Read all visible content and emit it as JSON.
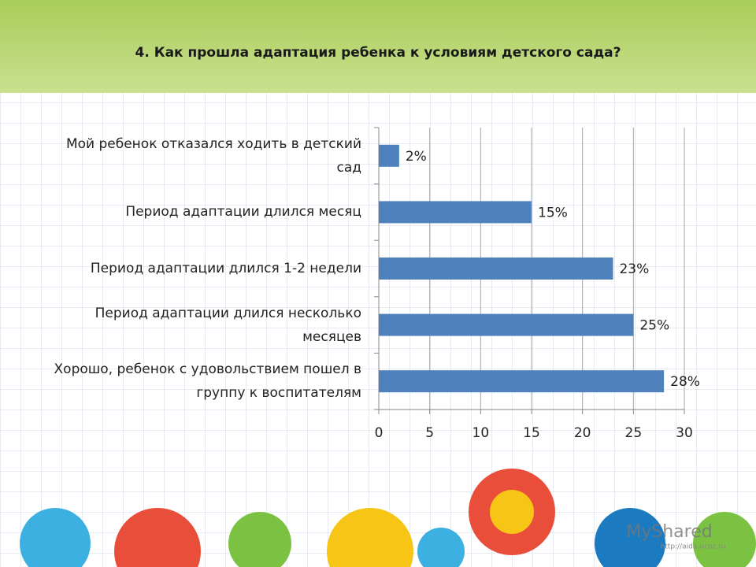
{
  "chart_data": {
    "type": "bar",
    "orientation": "horizontal",
    "title": "4. Как прошла адаптация ребенка к условиям детского сада?",
    "categories": [
      "Мой ребенок отказался ходить в детский сад",
      "Период адаптации длился месяц",
      "Период адаптации длился 1-2 недели",
      "Период адаптации длился несколько месяцев",
      "Хорошо, ребенок с удовольствием пошел в группу к воспитателям"
    ],
    "values": [
      2,
      15,
      23,
      25,
      28
    ],
    "value_labels": [
      "2%",
      "15%",
      "23%",
      "25%",
      "28%"
    ],
    "color": "#4f81bd",
    "xlim": [
      0,
      30
    ],
    "xticks": [
      0,
      5,
      10,
      15,
      20,
      25,
      30
    ],
    "grid": true
  },
  "watermark": "MyShared",
  "watermark_url": "http://aida.ucoz.ru"
}
